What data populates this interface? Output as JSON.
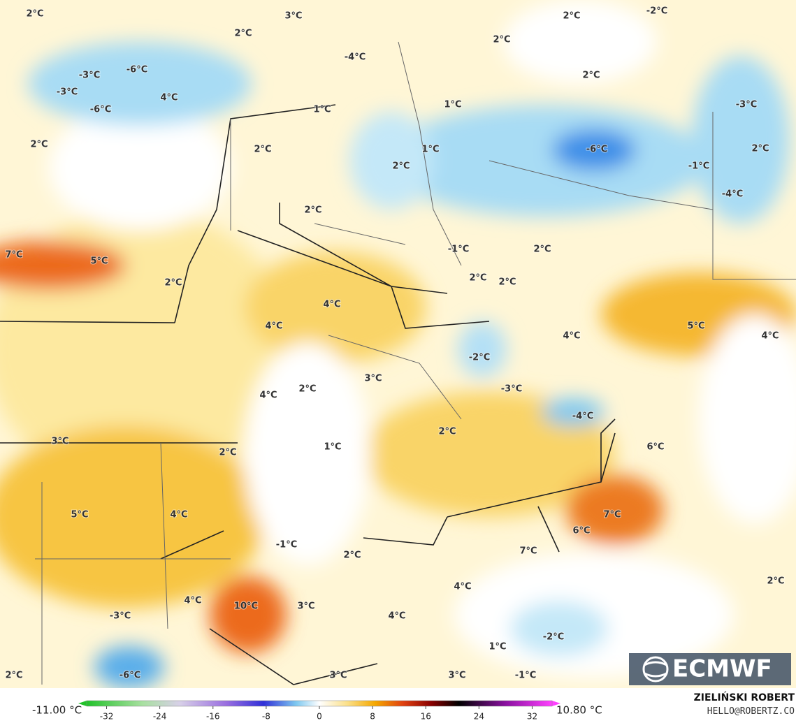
{
  "map": {
    "labels": [
      "2°C",
      "3°C",
      "2°C",
      "-2°C",
      "2°C",
      "2°C",
      "-4°C",
      "-6°C",
      "-3°C",
      "2°C",
      "-3°C",
      "4°C",
      "1°C",
      "1°C",
      "-6°C",
      "-3°C",
      "2°C",
      "2°C",
      "1°C",
      "-6°C",
      "2°C",
      "2°C",
      "-1°C",
      "-4°C",
      "2°C",
      "-1°C",
      "2°C",
      "7°C",
      "5°C",
      "2°C",
      "2°C",
      "2°C",
      "4°C",
      "4°C",
      "5°C",
      "4°C",
      "4°C",
      "-2°C",
      "3°C",
      "2°C",
      "4°C",
      "-3°C",
      "-4°C",
      "2°C",
      "6°C",
      "3°C",
      "1°C",
      "2°C",
      "5°C",
      "4°C",
      "7°C",
      "6°C",
      "-1°C",
      "7°C",
      "2°C",
      "2°C",
      "4°C",
      "4°C",
      "10°C",
      "3°C",
      "-3°C",
      "4°C",
      "-2°C",
      "1°C",
      "2°C",
      "-6°C",
      "3°C",
      "3°C",
      "-1°C"
    ],
    "logo": "ECMWF"
  },
  "colorbar": {
    "min_label": "-11.00 °C",
    "max_label": "10.80 °C",
    "xlim": [
      -35,
      35
    ],
    "ticks": [
      -32,
      -24,
      -16,
      -8,
      0,
      8,
      16,
      24,
      32
    ]
  },
  "credits": {
    "name": "ZIELIŃSKI ROBERT",
    "email": "HELLO@ROBERTZ.CO"
  }
}
